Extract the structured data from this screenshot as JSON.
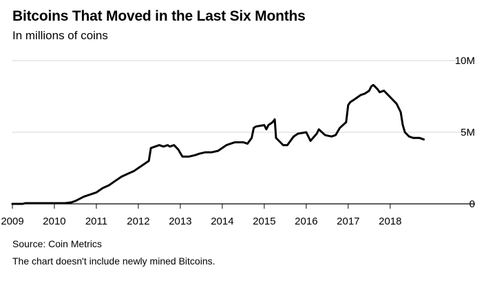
{
  "title": "Bitcoins That Moved in the Last Six Months",
  "subtitle": "In millions of coins",
  "source": "Source: Coin Metrics",
  "note": "The chart doesn't include newly mined Bitcoins.",
  "chart_data": {
    "type": "line",
    "title": "Bitcoins That Moved in the Last Six Months",
    "subtitle": "In millions of coins",
    "xlabel": "",
    "ylabel": "",
    "xlim": [
      2009.0,
      2019.2
    ],
    "ylim": [
      0,
      10
    ],
    "grid": true,
    "legend": "none",
    "line_color": "#000000",
    "x_ticks": [
      2009,
      2010,
      2011,
      2012,
      2013,
      2014,
      2015,
      2016,
      2017,
      2018
    ],
    "x_tick_labels": [
      "2009",
      "2010",
      "2011",
      "2012",
      "2013",
      "2014",
      "2015",
      "2016",
      "2017",
      "2018"
    ],
    "y_ticks": [
      0,
      5,
      10
    ],
    "y_tick_labels": [
      "0",
      "5M",
      "10M"
    ],
    "series": [
      {
        "x": [
          2009.0,
          2009.25,
          2009.3,
          2009.6,
          2010.0,
          2010.25,
          2010.4,
          2010.5,
          2010.7,
          2010.9,
          2011.0,
          2011.15,
          2011.3,
          2011.45,
          2011.6,
          2011.75,
          2011.9,
          2012.0,
          2012.15,
          2012.25,
          2012.3,
          2012.4,
          2012.5,
          2012.6,
          2012.7,
          2012.75,
          2012.85,
          2012.95,
          2013.05,
          2013.2,
          2013.35,
          2013.45,
          2013.6,
          2013.75,
          2013.9,
          2014.0,
          2014.1,
          2014.2,
          2014.3,
          2014.45,
          2014.5,
          2014.6,
          2014.7,
          2014.75,
          2014.8,
          2015.0,
          2015.05,
          2015.1,
          2015.2,
          2015.25,
          2015.28,
          2015.35,
          2015.45,
          2015.55,
          2015.7,
          2015.8,
          2016.0,
          2016.1,
          2016.25,
          2016.3,
          2016.45,
          2016.6,
          2016.7,
          2016.8,
          2016.95,
          2017.0,
          2017.05,
          2017.15,
          2017.3,
          2017.4,
          2017.5,
          2017.55,
          2017.6,
          2017.7,
          2017.75,
          2017.85,
          2017.95,
          2018.05,
          2018.15,
          2018.25,
          2018.3,
          2018.35,
          2018.45,
          2018.55,
          2018.7,
          2018.8
        ],
        "values": [
          0.0,
          0.0,
          0.05,
          0.05,
          0.05,
          0.05,
          0.1,
          0.2,
          0.5,
          0.7,
          0.8,
          1.1,
          1.3,
          1.6,
          1.9,
          2.1,
          2.3,
          2.5,
          2.8,
          3.0,
          3.9,
          4.0,
          4.1,
          4.0,
          4.1,
          4.0,
          4.1,
          3.8,
          3.3,
          3.3,
          3.4,
          3.5,
          3.6,
          3.6,
          3.7,
          3.9,
          4.1,
          4.2,
          4.3,
          4.3,
          4.3,
          4.2,
          4.6,
          5.3,
          5.4,
          5.5,
          5.2,
          5.5,
          5.7,
          5.9,
          4.6,
          4.4,
          4.1,
          4.1,
          4.7,
          4.9,
          5.0,
          4.4,
          4.9,
          5.2,
          4.8,
          4.7,
          4.8,
          5.3,
          5.7,
          6.9,
          7.1,
          7.3,
          7.6,
          7.7,
          7.9,
          8.2,
          8.3,
          8.0,
          7.8,
          7.9,
          7.6,
          7.3,
          7.0,
          6.4,
          5.5,
          5.0,
          4.7,
          4.6,
          4.6,
          4.5
        ]
      }
    ]
  }
}
